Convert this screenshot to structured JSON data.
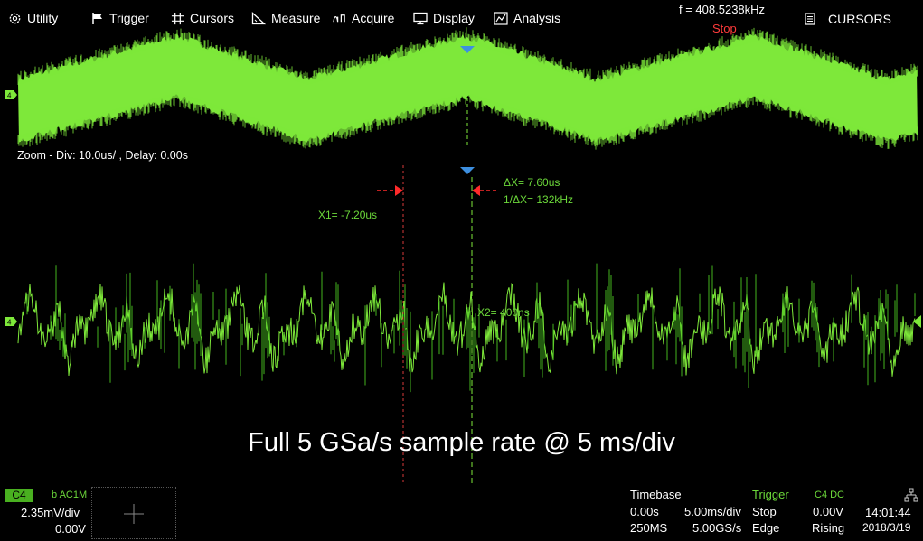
{
  "menu": {
    "utility": "Utility",
    "trigger": "Trigger",
    "cursors": "Cursors",
    "measure": "Measure",
    "acquire": "Acquire",
    "display": "Display",
    "analysis": "Analysis"
  },
  "status": {
    "frequency": "f = 408.5238kHz",
    "run_state": "Stop",
    "cursors_button": "CURSORS"
  },
  "channel_marker": "4",
  "zoom_label": "Zoom - Div: 10.0us/ ,  Delay: 0.00s",
  "cursors": {
    "x1": "X1= -7.20us",
    "x2": "X2= 400ns",
    "delta_x": "ΔX= 7.60us",
    "inv_delta_x": "1/ΔX= 132kHz"
  },
  "caption": "Full 5 GSa/s sample rate @ 5 ms/div",
  "channel": {
    "name": "C4",
    "coupling": "b AC1M",
    "scale": "2.35mV/div",
    "offset": "0.00V"
  },
  "timebase": {
    "header": "Timebase",
    "delay": "0.00s",
    "scale": "5.00ms/div",
    "memory": "250MS",
    "sample_rate": "5.00GS/s"
  },
  "trigger": {
    "header": "Trigger",
    "state": "Stop",
    "type": "Edge",
    "source_header": "C4 DC",
    "level": "0.00V",
    "slope": "Rising"
  },
  "clock": {
    "time": "14:01:44",
    "date": "2018/3/19"
  },
  "colors": {
    "trace": "#7ee83a",
    "trace_dark": "#43b51e",
    "stop": "#ff3b3b",
    "cursor_marker": "#ff2a2a",
    "trigger_marker": "#3d8fe0"
  },
  "icons": [
    "gear-icon",
    "flag-icon",
    "crosshair-grid-icon",
    "ruler-icon",
    "acquire-icon",
    "monitor-icon",
    "analysis-icon",
    "list-icon",
    "usb-icon"
  ]
}
